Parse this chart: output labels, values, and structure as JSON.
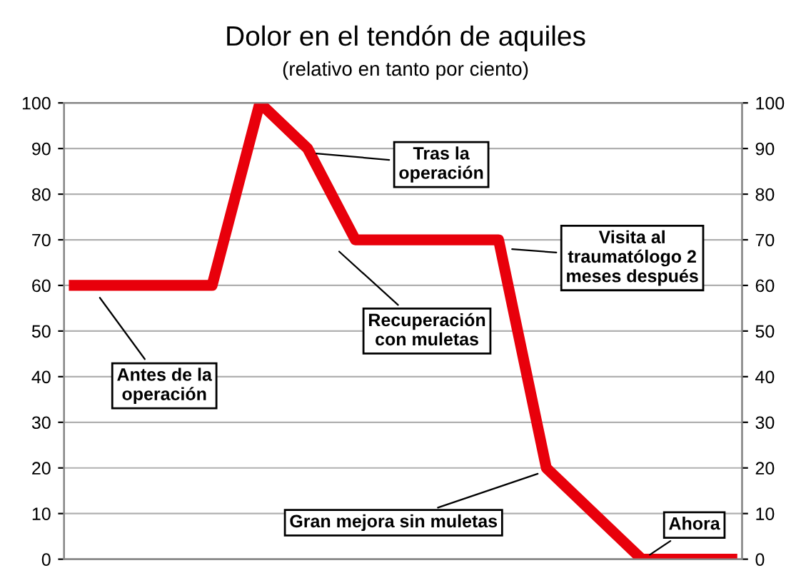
{
  "chart_data": {
    "type": "line",
    "title": "Dolor en el tendón de aquiles",
    "subtitle": "(relativo en tanto por ciento)",
    "categories": [
      null,
      null,
      null,
      null,
      null,
      null,
      null,
      null,
      null,
      null,
      null,
      null,
      null,
      null,
      null
    ],
    "series": [
      {
        "color": "#e8000b",
        "values": [
          60,
          60,
          60,
          60,
          100,
          90,
          70,
          70,
          70,
          70,
          20,
          10,
          0,
          0,
          0
        ]
      }
    ],
    "ylim": [
      0,
      100
    ],
    "yticks": [
      0,
      10,
      20,
      30,
      40,
      50,
      60,
      70,
      80,
      90,
      100
    ],
    "y2lim": [
      0,
      100
    ],
    "y2ticks": [
      0,
      10,
      20,
      30,
      40,
      50,
      60,
      70,
      80,
      90,
      100
    ],
    "grid": "y",
    "marker": "none",
    "line_style": "solid",
    "legend": false,
    "tick_labels": "y",
    "annotations": [
      "Antes de la\noperación",
      "Tras la\noperación",
      "Recuperación\ncon muletas",
      "Visita al\ntraumatólogo 2\nmeses después",
      "Gran mejora sin muletas",
      "Ahora"
    ]
  }
}
